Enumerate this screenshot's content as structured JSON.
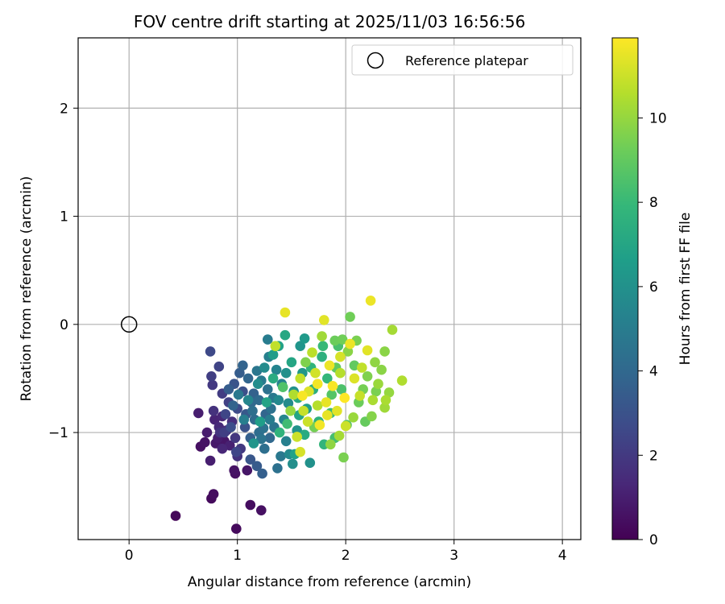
{
  "chart_data": {
    "type": "scatter",
    "title": "FOV centre drift starting at 2025/11/03 16:56:56",
    "xlabel": "Angular distance from reference (arcmin)",
    "ylabel": "Rotation from reference (arcmin)",
    "xlim": [
      -0.47,
      4.17
    ],
    "ylim": [
      -1.99,
      2.65
    ],
    "xticks": [
      0,
      1,
      2,
      3,
      4
    ],
    "yticks": [
      -1,
      0,
      1,
      2
    ],
    "xtick_labels": [
      "0",
      "1",
      "2",
      "3",
      "4"
    ],
    "ytick_labels": [
      "−1",
      "0",
      "1",
      "2"
    ],
    "grid": true,
    "legend": {
      "placement": "upper-right",
      "entries": [
        "Reference platepar"
      ]
    },
    "reference_point": {
      "name": "Reference platepar",
      "x": 0,
      "y": 0
    },
    "colorbar": {
      "label": "Hours from first FF file",
      "colormap": "viridis",
      "range": [
        0,
        11.9
      ],
      "ticks": [
        0,
        2,
        4,
        6,
        8,
        10
      ],
      "tick_labels": [
        "0",
        "2",
        "4",
        "6",
        "8",
        "10"
      ]
    },
    "series": [
      {
        "color_by": "hours",
        "points": [
          {
            "x": 0.43,
            "y": -1.77,
            "h": 0.2
          },
          {
            "x": 0.76,
            "y": -1.61,
            "h": 0.3
          },
          {
            "x": 0.78,
            "y": -1.57,
            "h": 0.4
          },
          {
            "x": 0.99,
            "y": -1.89,
            "h": 0.3
          },
          {
            "x": 1.12,
            "y": -1.67,
            "h": 0.4
          },
          {
            "x": 1.22,
            "y": -1.72,
            "h": 0.5
          },
          {
            "x": 0.98,
            "y": -1.38,
            "h": 0.5
          },
          {
            "x": 0.97,
            "y": -1.35,
            "h": 0.6
          },
          {
            "x": 1.09,
            "y": -1.35,
            "h": 0.7
          },
          {
            "x": 0.66,
            "y": -1.13,
            "h": 0.5
          },
          {
            "x": 0.7,
            "y": -1.09,
            "h": 0.6
          },
          {
            "x": 0.75,
            "y": -1.26,
            "h": 1.0
          },
          {
            "x": 0.8,
            "y": -1.1,
            "h": 0.8
          },
          {
            "x": 0.82,
            "y": -1.05,
            "h": 0.9
          },
          {
            "x": 0.88,
            "y": -1.08,
            "h": 0.7
          },
          {
            "x": 0.93,
            "y": -1.12,
            "h": 1.1
          },
          {
            "x": 0.64,
            "y": -0.82,
            "h": 1.0
          },
          {
            "x": 0.79,
            "y": -0.88,
            "h": 1.2
          },
          {
            "x": 0.83,
            "y": -0.95,
            "h": 1.4
          },
          {
            "x": 0.86,
            "y": -0.85,
            "h": 1.3
          },
          {
            "x": 0.9,
            "y": -0.98,
            "h": 1.5
          },
          {
            "x": 0.78,
            "y": -0.8,
            "h": 1.7
          },
          {
            "x": 0.84,
            "y": -1.0,
            "h": 1.8
          },
          {
            "x": 0.95,
            "y": -0.9,
            "h": 1.6
          },
          {
            "x": 0.98,
            "y": -1.05,
            "h": 1.9
          },
          {
            "x": 1.03,
            "y": -1.15,
            "h": 2.0
          },
          {
            "x": 0.76,
            "y": -0.48,
            "h": 2.2
          },
          {
            "x": 0.77,
            "y": -0.56,
            "h": 2.0
          },
          {
            "x": 0.75,
            "y": -0.25,
            "h": 2.6
          },
          {
            "x": 0.83,
            "y": -0.39,
            "h": 2.4
          },
          {
            "x": 0.86,
            "y": -0.64,
            "h": 2.1
          },
          {
            "x": 0.92,
            "y": -0.72,
            "h": 2.3
          },
          {
            "x": 0.89,
            "y": -0.83,
            "h": 2.5
          },
          {
            "x": 1.0,
            "y": -0.78,
            "h": 2.7
          },
          {
            "x": 0.99,
            "y": -1.18,
            "h": 2.5
          },
          {
            "x": 1.05,
            "y": -0.62,
            "h": 2.9
          },
          {
            "x": 1.07,
            "y": -0.95,
            "h": 3.0
          },
          {
            "x": 1.12,
            "y": -1.25,
            "h": 3.2
          },
          {
            "x": 1.18,
            "y": -1.31,
            "h": 3.4
          },
          {
            "x": 1.23,
            "y": -1.38,
            "h": 3.6
          },
          {
            "x": 0.97,
            "y": -0.55,
            "h": 3.1
          },
          {
            "x": 1.02,
            "y": -0.45,
            "h": 3.5
          },
          {
            "x": 1.05,
            "y": -0.38,
            "h": 3.8
          },
          {
            "x": 1.1,
            "y": -0.5,
            "h": 3.9
          },
          {
            "x": 1.13,
            "y": -0.72,
            "h": 4.0
          },
          {
            "x": 1.16,
            "y": -0.88,
            "h": 4.1
          },
          {
            "x": 1.2,
            "y": -1.0,
            "h": 4.2
          },
          {
            "x": 1.25,
            "y": -1.15,
            "h": 4.3
          },
          {
            "x": 1.28,
            "y": -0.6,
            "h": 4.4
          },
          {
            "x": 1.31,
            "y": -0.78,
            "h": 4.5
          },
          {
            "x": 1.34,
            "y": -0.95,
            "h": 4.6
          },
          {
            "x": 1.37,
            "y": -1.33,
            "h": 4.4
          },
          {
            "x": 1.4,
            "y": -1.22,
            "h": 4.8
          },
          {
            "x": 1.18,
            "y": -0.43,
            "h": 4.7
          },
          {
            "x": 1.22,
            "y": -0.52,
            "h": 4.9
          },
          {
            "x": 1.15,
            "y": -0.64,
            "h": 3.7
          },
          {
            "x": 1.08,
            "y": -0.83,
            "h": 3.3
          },
          {
            "x": 1.12,
            "y": -1.05,
            "h": 3.6
          },
          {
            "x": 1.2,
            "y": -0.7,
            "h": 4.1
          },
          {
            "x": 1.26,
            "y": -0.83,
            "h": 3.9
          },
          {
            "x": 1.3,
            "y": -1.05,
            "h": 4.0
          },
          {
            "x": 1.24,
            "y": -0.96,
            "h": 4.5
          },
          {
            "x": 1.33,
            "y": -0.68,
            "h": 4.8
          },
          {
            "x": 1.28,
            "y": -0.14,
            "h": 5.0
          },
          {
            "x": 1.29,
            "y": -0.3,
            "h": 5.2
          },
          {
            "x": 1.36,
            "y": -0.42,
            "h": 5.4
          },
          {
            "x": 1.41,
            "y": -0.55,
            "h": 5.3
          },
          {
            "x": 1.43,
            "y": -0.88,
            "h": 5.5
          },
          {
            "x": 1.45,
            "y": -1.08,
            "h": 5.2
          },
          {
            "x": 1.48,
            "y": -1.2,
            "h": 5.6
          },
          {
            "x": 1.51,
            "y": -1.29,
            "h": 5.9
          },
          {
            "x": 1.47,
            "y": -0.73,
            "h": 5.7
          },
          {
            "x": 1.52,
            "y": -0.62,
            "h": 6.0
          },
          {
            "x": 1.55,
            "y": -0.98,
            "h": 6.1
          },
          {
            "x": 1.58,
            "y": -0.2,
            "h": 6.2
          },
          {
            "x": 1.62,
            "y": -0.13,
            "h": 6.4
          },
          {
            "x": 1.6,
            "y": -0.45,
            "h": 6.3
          },
          {
            "x": 1.64,
            "y": -0.78,
            "h": 6.6
          },
          {
            "x": 1.67,
            "y": -1.28,
            "h": 6.0
          },
          {
            "x": 1.38,
            "y": -0.2,
            "h": 6.8
          },
          {
            "x": 1.44,
            "y": -0.1,
            "h": 7.1
          },
          {
            "x": 1.5,
            "y": -0.35,
            "h": 7.0
          },
          {
            "x": 1.56,
            "y": -0.68,
            "h": 7.2
          },
          {
            "x": 1.62,
            "y": -1.02,
            "h": 7.3
          },
          {
            "x": 1.7,
            "y": -0.6,
            "h": 7.4
          },
          {
            "x": 1.75,
            "y": -0.9,
            "h": 7.6
          },
          {
            "x": 1.78,
            "y": -0.3,
            "h": 7.5
          },
          {
            "x": 1.8,
            "y": -1.11,
            "h": 7.8
          },
          {
            "x": 1.83,
            "y": -0.5,
            "h": 7.9
          },
          {
            "x": 1.86,
            "y": -0.82,
            "h": 8.1
          },
          {
            "x": 1.9,
            "y": -1.05,
            "h": 8.3
          },
          {
            "x": 1.93,
            "y": -0.2,
            "h": 8.4
          },
          {
            "x": 1.96,
            "y": -0.6,
            "h": 8.5
          },
          {
            "x": 1.98,
            "y": -1.23,
            "h": 9.5
          },
          {
            "x": 2.01,
            "y": -0.93,
            "h": 8.8
          },
          {
            "x": 2.04,
            "y": 0.07,
            "h": 9.3
          },
          {
            "x": 2.08,
            "y": -0.38,
            "h": 9.0
          },
          {
            "x": 2.12,
            "y": -0.72,
            "h": 9.2
          },
          {
            "x": 2.16,
            "y": -0.6,
            "h": 9.4
          },
          {
            "x": 2.2,
            "y": -0.48,
            "h": 9.6
          },
          {
            "x": 2.24,
            "y": -0.85,
            "h": 9.7
          },
          {
            "x": 2.27,
            "y": -0.35,
            "h": 9.9
          },
          {
            "x": 2.3,
            "y": -0.55,
            "h": 10.1
          },
          {
            "x": 2.33,
            "y": -0.42,
            "h": 9.8
          },
          {
            "x": 2.36,
            "y": -0.77,
            "h": 10.2
          },
          {
            "x": 2.37,
            "y": -0.7,
            "h": 10.4
          },
          {
            "x": 2.4,
            "y": -0.63,
            "h": 10.0
          },
          {
            "x": 2.43,
            "y": -0.05,
            "h": 10.3
          },
          {
            "x": 2.52,
            "y": -0.52,
            "h": 10.5
          },
          {
            "x": 2.36,
            "y": -0.25,
            "h": 9.8
          },
          {
            "x": 2.1,
            "y": -0.15,
            "h": 9.5
          },
          {
            "x": 1.9,
            "y": -0.15,
            "h": 9.2
          },
          {
            "x": 1.44,
            "y": 0.11,
            "h": 11.5
          },
          {
            "x": 1.8,
            "y": 0.04,
            "h": 11.4
          },
          {
            "x": 2.23,
            "y": 0.22,
            "h": 11.6
          },
          {
            "x": 1.58,
            "y": -1.18,
            "h": 11.2
          },
          {
            "x": 1.55,
            "y": -1.04,
            "h": 11.0
          },
          {
            "x": 1.61,
            "y": -0.8,
            "h": 10.9
          },
          {
            "x": 1.66,
            "y": -0.62,
            "h": 11.3
          },
          {
            "x": 1.72,
            "y": -0.45,
            "h": 11.1
          },
          {
            "x": 1.76,
            "y": -0.93,
            "h": 11.7
          },
          {
            "x": 1.82,
            "y": -0.72,
            "h": 11.5
          },
          {
            "x": 1.85,
            "y": -0.38,
            "h": 11.6
          },
          {
            "x": 1.88,
            "y": -0.57,
            "h": 11.8
          },
          {
            "x": 1.92,
            "y": -0.8,
            "h": 11.4
          },
          {
            "x": 1.95,
            "y": -0.3,
            "h": 11.2
          },
          {
            "x": 2.0,
            "y": -0.94,
            "h": 11.0
          },
          {
            "x": 2.04,
            "y": -0.18,
            "h": 11.6
          },
          {
            "x": 2.08,
            "y": -0.5,
            "h": 11.3
          },
          {
            "x": 2.13,
            "y": -0.66,
            "h": 10.9
          },
          {
            "x": 2.2,
            "y": -0.24,
            "h": 11.4
          },
          {
            "x": 1.69,
            "y": -0.26,
            "h": 10.7
          },
          {
            "x": 1.74,
            "y": -0.75,
            "h": 10.6
          },
          {
            "x": 1.78,
            "y": -0.11,
            "h": 10.2
          },
          {
            "x": 1.58,
            "y": -0.5,
            "h": 10.8
          },
          {
            "x": 1.52,
            "y": -0.65,
            "h": 10.5
          },
          {
            "x": 1.49,
            "y": -0.8,
            "h": 10.0
          },
          {
            "x": 1.35,
            "y": -0.2,
            "h": 10.8
          },
          {
            "x": 1.63,
            "y": -0.35,
            "h": 9.6
          },
          {
            "x": 1.71,
            "y": -0.95,
            "h": 9.4
          },
          {
            "x": 1.86,
            "y": -1.11,
            "h": 9.9
          },
          {
            "x": 1.94,
            "y": -1.03,
            "h": 10.3
          },
          {
            "x": 2.07,
            "y": -0.86,
            "h": 10.1
          },
          {
            "x": 1.99,
            "y": -0.68,
            "h": 11.9
          },
          {
            "x": 1.83,
            "y": -0.84,
            "h": 11.5
          },
          {
            "x": 1.65,
            "y": -0.9,
            "h": 11.0
          },
          {
            "x": 1.6,
            "y": -0.66,
            "h": 11.8
          },
          {
            "x": 1.74,
            "y": -0.55,
            "h": 11.7
          },
          {
            "x": 1.95,
            "y": -0.45,
            "h": 10.6
          },
          {
            "x": 2.15,
            "y": -0.4,
            "h": 10.8
          },
          {
            "x": 2.25,
            "y": -0.7,
            "h": 10.4
          },
          {
            "x": 1.42,
            "y": -0.58,
            "h": 8.6
          },
          {
            "x": 1.46,
            "y": -0.92,
            "h": 8.2
          },
          {
            "x": 1.39,
            "y": -1.0,
            "h": 7.7
          },
          {
            "x": 1.33,
            "y": -0.5,
            "h": 7.3
          },
          {
            "x": 1.27,
            "y": -0.72,
            "h": 6.9
          },
          {
            "x": 1.21,
            "y": -0.9,
            "h": 6.6
          },
          {
            "x": 1.15,
            "y": -1.1,
            "h": 6.2
          },
          {
            "x": 1.19,
            "y": -0.55,
            "h": 5.8
          },
          {
            "x": 1.1,
            "y": -0.7,
            "h": 5.5
          },
          {
            "x": 1.06,
            "y": -0.88,
            "h": 5.1
          },
          {
            "x": 1.01,
            "y": -0.65,
            "h": 4.8
          },
          {
            "x": 1.25,
            "y": -0.4,
            "h": 5.7
          },
          {
            "x": 1.33,
            "y": -0.28,
            "h": 6.5
          },
          {
            "x": 1.53,
            "y": -1.2,
            "h": 6.8
          },
          {
            "x": 1.57,
            "y": -0.84,
            "h": 7.0
          },
          {
            "x": 1.68,
            "y": -0.4,
            "h": 7.7
          },
          {
            "x": 1.79,
            "y": -0.2,
            "h": 8.0
          },
          {
            "x": 1.87,
            "y": -0.65,
            "h": 8.7
          },
          {
            "x": 1.91,
            "y": -0.4,
            "h": 9.0
          },
          {
            "x": 1.97,
            "y": -0.14,
            "h": 9.3
          },
          {
            "x": 2.02,
            "y": -0.25,
            "h": 9.8
          },
          {
            "x": 2.18,
            "y": -0.9,
            "h": 9.1
          },
          {
            "x": 2.28,
            "y": -0.62,
            "h": 9.5
          },
          {
            "x": 1.45,
            "y": -0.45,
            "h": 6.0
          },
          {
            "x": 1.38,
            "y": -0.7,
            "h": 5.6
          },
          {
            "x": 1.3,
            "y": -0.88,
            "h": 5.0
          },
          {
            "x": 1.22,
            "y": -1.06,
            "h": 4.6
          },
          {
            "x": 1.14,
            "y": -0.8,
            "h": 4.3
          },
          {
            "x": 0.96,
            "y": -0.75,
            "h": 3.8
          },
          {
            "x": 0.92,
            "y": -0.6,
            "h": 3.5
          },
          {
            "x": 0.94,
            "y": -0.95,
            "h": 2.8
          },
          {
            "x": 0.88,
            "y": -1.0,
            "h": 2.2
          },
          {
            "x": 1.0,
            "y": -1.22,
            "h": 1.7
          },
          {
            "x": 0.86,
            "y": -1.15,
            "h": 1.3
          },
          {
            "x": 0.72,
            "y": -1.0,
            "h": 0.9
          }
        ]
      }
    ]
  }
}
